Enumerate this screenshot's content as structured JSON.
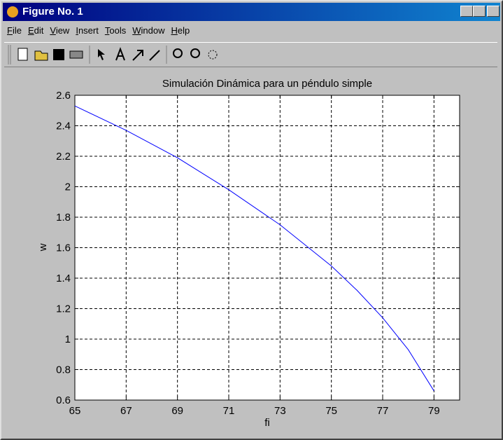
{
  "window": {
    "title": "Figure No. 1",
    "menu": [
      "File",
      "Edit",
      "View",
      "Insert",
      "Tools",
      "Window",
      "Help"
    ]
  },
  "chart_data": {
    "type": "line",
    "title": "Simulación Dinámica para un péndulo simple",
    "x_label": "fi",
    "y_label": "w",
    "x": [
      65,
      67,
      69,
      71,
      73,
      75,
      76,
      77,
      78,
      79
    ],
    "values": [
      2.53,
      2.37,
      2.19,
      1.98,
      1.75,
      1.48,
      1.32,
      1.14,
      0.93,
      0.66
    ],
    "color": "#0000ff",
    "xlim": [
      65,
      80
    ],
    "xticks": [
      65,
      67,
      69,
      71,
      73,
      75,
      77,
      79
    ],
    "ylim": [
      0.6,
      2.6
    ],
    "yticks": [
      0.6,
      0.8,
      1,
      1.2,
      1.4,
      1.6,
      1.8,
      2,
      2.2,
      2.4,
      2.6
    ],
    "grid": true
  }
}
